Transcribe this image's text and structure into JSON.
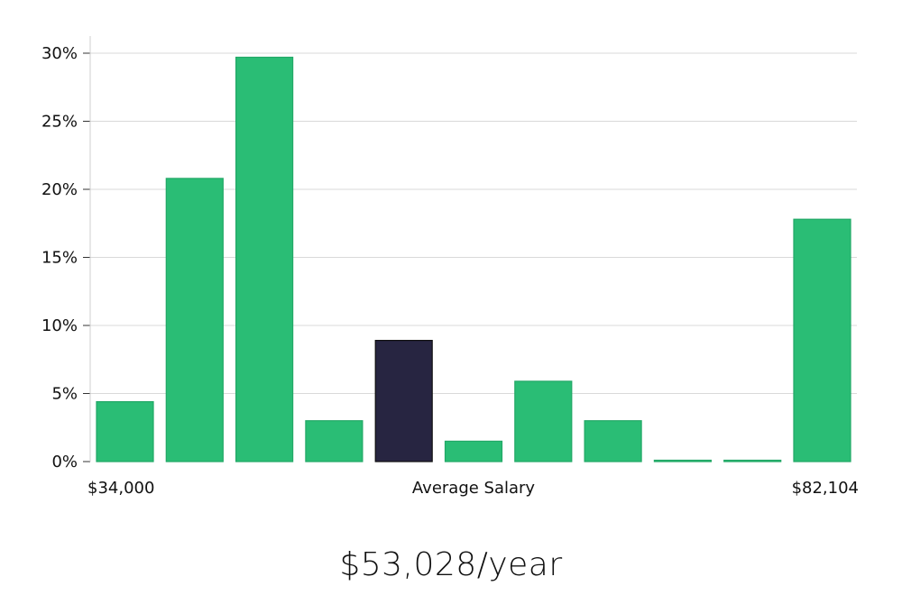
{
  "chart_data": {
    "type": "bar",
    "values": [
      4.4,
      20.8,
      29.7,
      3.0,
      8.9,
      1.5,
      5.9,
      3.0,
      0.05,
      0.05,
      17.8
    ],
    "highlight_index": 4,
    "ylim": [
      0,
      31
    ],
    "yticks": [
      0,
      5,
      10,
      15,
      20,
      25,
      30
    ],
    "ytick_suffix": "%",
    "grid": true,
    "min_label": "$34,000",
    "center_label": "Average Salary",
    "max_label": "$82,104",
    "colors": {
      "bar": "#2abd75",
      "bar_edge": "#22a866",
      "highlight": "#272541",
      "grid": "#d9d9d9",
      "axis": "#cfcfcf"
    }
  },
  "salary_text": "$53,028/year"
}
